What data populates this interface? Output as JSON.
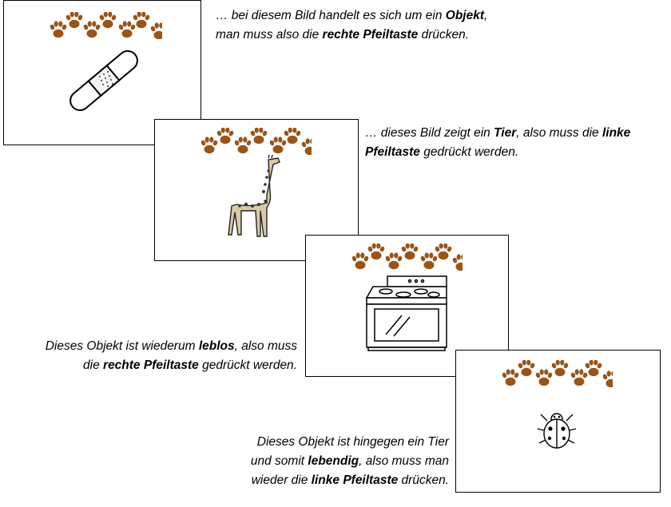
{
  "colors": {
    "paw": "#9a5418",
    "frame": "#000000"
  },
  "slides": [
    {
      "image": "bandage-icon",
      "caption": [
        [
          {
            "t": "… bei diesem Bild handelt es sich um ein ",
            "b": false
          },
          {
            "t": "Objekt",
            "b": true
          },
          {
            "t": ",",
            "b": false
          }
        ],
        [
          {
            "t": "man muss also die ",
            "b": false
          },
          {
            "t": "rechte Pfeiltaste",
            "b": true
          },
          {
            "t": " drücken.",
            "b": false
          }
        ]
      ]
    },
    {
      "image": "giraffe-icon",
      "caption": [
        [
          {
            "t": "… dieses Bild zeigt ein ",
            "b": false
          },
          {
            "t": "Tier",
            "b": true
          },
          {
            "t": ", also muss die ",
            "b": false
          },
          {
            "t": "linke",
            "b": true
          }
        ],
        [
          {
            "t": "Pfeiltaste",
            "b": true
          },
          {
            "t": " gedrückt werden.",
            "b": false
          }
        ]
      ]
    },
    {
      "image": "stove-icon",
      "caption": [
        [
          {
            "t": "Dieses Objekt ist wiederum ",
            "b": false
          },
          {
            "t": "leblos",
            "b": true
          },
          {
            "t": ", also muss",
            "b": false
          }
        ],
        [
          {
            "t": "die ",
            "b": false
          },
          {
            "t": "rechte Pfeiltaste",
            "b": true
          },
          {
            "t": " gedrückt werden.",
            "b": false
          }
        ]
      ]
    },
    {
      "image": "ladybug-icon",
      "caption": [
        [
          {
            "t": "Dieses Objekt ist hingegen ein Tier",
            "b": false
          }
        ],
        [
          {
            "t": "und somit ",
            "b": false
          },
          {
            "t": "lebendig",
            "b": true
          },
          {
            "t": ", also muss man",
            "b": false
          }
        ],
        [
          {
            "t": "wieder die ",
            "b": false
          },
          {
            "t": "linke Pfeiltaste",
            "b": true
          },
          {
            "t": " drücken.",
            "b": false
          }
        ]
      ]
    }
  ]
}
